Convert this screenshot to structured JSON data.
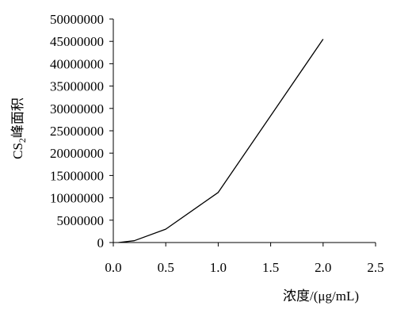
{
  "chart_data": {
    "type": "line",
    "title": "",
    "xlabel": "浓度/(μg/mL)",
    "ylabel_main": "CS",
    "ylabel_sub": "2",
    "ylabel_rest": "峰面积",
    "xlim": [
      0,
      2.5
    ],
    "ylim": [
      0,
      50000000
    ],
    "x_ticks": [
      "0.0",
      "0.5",
      "1.0",
      "1.5",
      "2.0",
      "2.5"
    ],
    "y_ticks": [
      "0",
      "5000000",
      "10000000",
      "15000000",
      "20000000",
      "25000000",
      "30000000",
      "35000000",
      "40000000",
      "45000000",
      "50000000"
    ],
    "grid": false,
    "series": [
      {
        "x": [
          0.05,
          0.2,
          0.5,
          1.0,
          2.0
        ],
        "y": [
          0,
          400000,
          3000000,
          11200000,
          45500000
        ],
        "color": "#000000"
      }
    ]
  }
}
